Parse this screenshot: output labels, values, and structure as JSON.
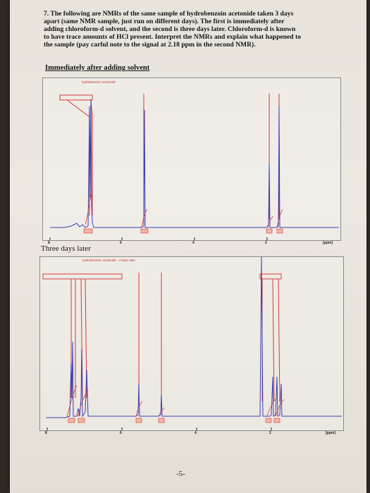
{
  "question": {
    "text": "7. The following are NMRs of the same sample of hydrobenzoin acetonide taken 3 days\napart (same NMR sample, just run on different days). The first is immediately after\nadding chloroform-d solvent, and the second is three days later. Chloroform-d is known\nto have trace amounts of HCl present. Interpret the NMRs and explain what happened to\nthe sample (pay carful note to the signal at 2.18 ppm in the second NMR)."
  },
  "spectrum1": {
    "heading": "Immediately after adding solvent",
    "legend": "hydrobenzoin acetonide",
    "xunit": "[ppm]",
    "ticks": [
      "8",
      "6",
      "4",
      "2"
    ]
  },
  "spectrum2": {
    "heading": "Three days later",
    "legend": "hydrobenzoin acetonide - 3 days later",
    "xunit": "[ppm]",
    "ticks": [
      "8",
      "6",
      "4",
      "2"
    ]
  },
  "page": {
    "number": "-5-"
  },
  "colors": {
    "trace": "#3b3fb0",
    "integral": "#d43a3a"
  }
}
